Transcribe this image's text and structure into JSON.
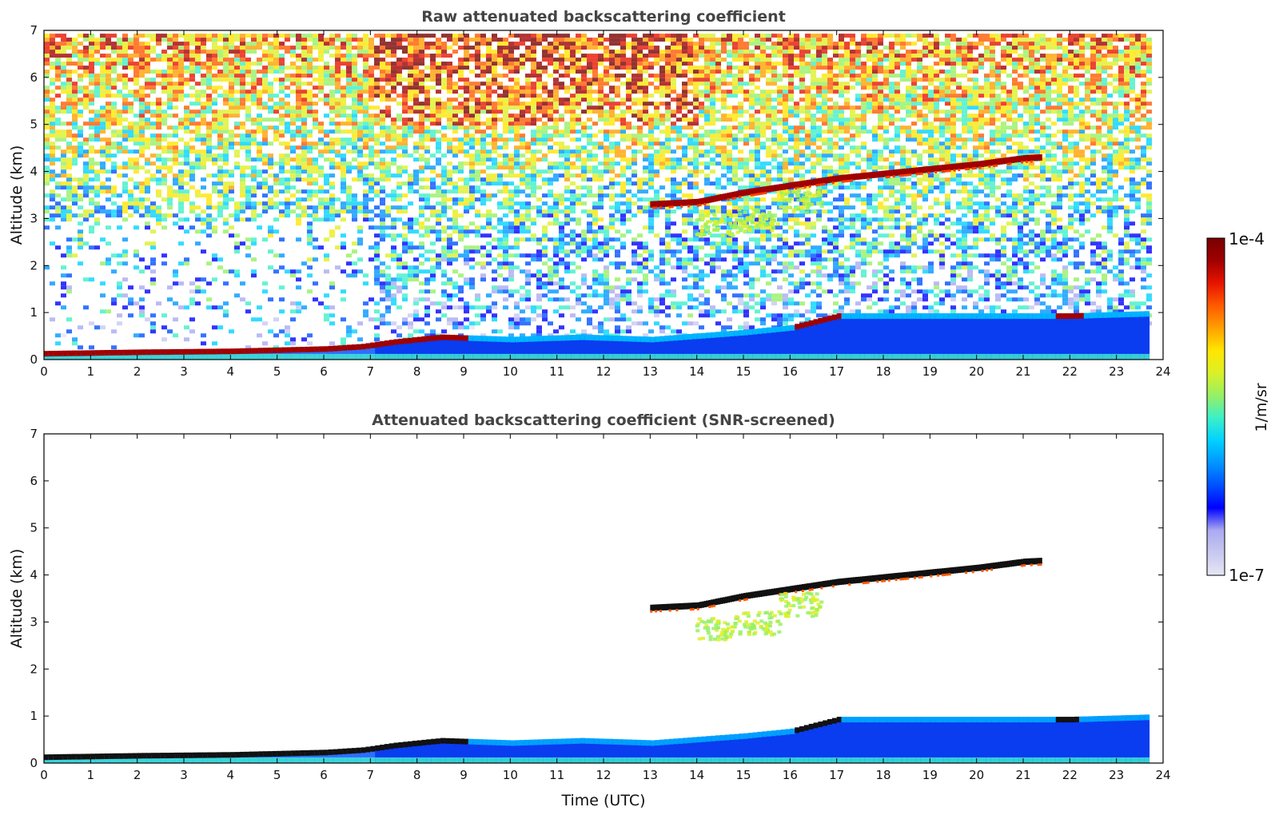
{
  "chart_data": [
    {
      "type": "heatmap",
      "title": "Raw attenuated backscattering coefficient",
      "xlabel": "",
      "ylabel": "Altitude (km)",
      "xlim": [
        0,
        24
      ],
      "ylim": [
        0,
        7
      ],
      "xticks": [
        "0",
        "1",
        "2",
        "3",
        "4",
        "5",
        "6",
        "7",
        "8",
        "9",
        "10",
        "11",
        "12",
        "13",
        "14",
        "15",
        "16",
        "17",
        "18",
        "19",
        "20",
        "21",
        "22",
        "23",
        "24"
      ],
      "yticks": [
        "0",
        "1",
        "2",
        "3",
        "4",
        "5",
        "6",
        "7"
      ],
      "data_end_time": 23.7,
      "boundary_layer": [
        [
          0,
          0.15
        ],
        [
          2,
          0.18
        ],
        [
          4,
          0.2
        ],
        [
          6,
          0.25
        ],
        [
          6.8,
          0.3
        ],
        [
          7.5,
          0.4
        ],
        [
          8.5,
          0.5
        ],
        [
          10,
          0.45
        ],
        [
          11.5,
          0.5
        ],
        [
          13,
          0.45
        ],
        [
          15,
          0.6
        ],
        [
          16,
          0.7
        ],
        [
          17,
          0.95
        ],
        [
          18.5,
          0.95
        ],
        [
          20,
          0.95
        ],
        [
          22,
          0.95
        ],
        [
          23.7,
          1.0
        ]
      ],
      "elevated_layer": [
        [
          13,
          3.3
        ],
        [
          14,
          3.35
        ],
        [
          15,
          3.55
        ],
        [
          16,
          3.7
        ],
        [
          17,
          3.85
        ],
        [
          18,
          3.95
        ],
        [
          19,
          4.05
        ],
        [
          20,
          4.15
        ],
        [
          21,
          4.28
        ],
        [
          21.4,
          4.3
        ]
      ],
      "aerosol_plume": [
        [
          14.4,
          2.8
        ],
        [
          15.3,
          2.9
        ],
        [
          16.2,
          3.3
        ]
      ],
      "noise_level": "high"
    },
    {
      "type": "heatmap",
      "title": "Attenuated backscattering coefficient (SNR-screened)",
      "xlabel": "Time (UTC)",
      "ylabel": "Altitude (km)",
      "xlim": [
        0,
        24
      ],
      "ylim": [
        0,
        7
      ],
      "xticks": [
        "0",
        "1",
        "2",
        "3",
        "4",
        "5",
        "6",
        "7",
        "8",
        "9",
        "10",
        "11",
        "12",
        "13",
        "14",
        "15",
        "16",
        "17",
        "18",
        "19",
        "20",
        "21",
        "22",
        "23",
        "24"
      ],
      "yticks": [
        "0",
        "1",
        "2",
        "3",
        "4",
        "5",
        "6",
        "7"
      ],
      "data_end_time": 23.7,
      "boundary_layer": [
        [
          0,
          0.15
        ],
        [
          2,
          0.18
        ],
        [
          4,
          0.2
        ],
        [
          6,
          0.25
        ],
        [
          6.8,
          0.3
        ],
        [
          7.5,
          0.4
        ],
        [
          8.5,
          0.5
        ],
        [
          10,
          0.45
        ],
        [
          11.5,
          0.5
        ],
        [
          13,
          0.45
        ],
        [
          15,
          0.6
        ],
        [
          16,
          0.7
        ],
        [
          17,
          0.95
        ],
        [
          18.5,
          0.95
        ],
        [
          20,
          0.95
        ],
        [
          22,
          0.95
        ],
        [
          23.7,
          1.0
        ]
      ],
      "elevated_layer": [
        [
          13,
          3.3
        ],
        [
          14,
          3.35
        ],
        [
          15,
          3.55
        ],
        [
          16,
          3.7
        ],
        [
          17,
          3.85
        ],
        [
          18,
          3.95
        ],
        [
          19,
          4.05
        ],
        [
          20,
          4.15
        ],
        [
          21,
          4.28
        ],
        [
          21.4,
          4.3
        ]
      ],
      "aerosol_plume": [
        [
          14.4,
          2.8
        ],
        [
          15.3,
          2.9
        ],
        [
          16.2,
          3.3
        ]
      ],
      "noise_level": "screened"
    }
  ],
  "colorbar": {
    "label": "1/m/sr",
    "max_label": "1e-4",
    "min_label": "1e-7",
    "colors": [
      "#e6e6f5",
      "#c8c8f0",
      "#aaaaf0",
      "#0000ff",
      "#0050ff",
      "#0096ff",
      "#00d2ff",
      "#3cf0c8",
      "#96f064",
      "#dcf028",
      "#ffe600",
      "#ffa000",
      "#ff5a00",
      "#e61400",
      "#a00000",
      "#780000"
    ]
  }
}
